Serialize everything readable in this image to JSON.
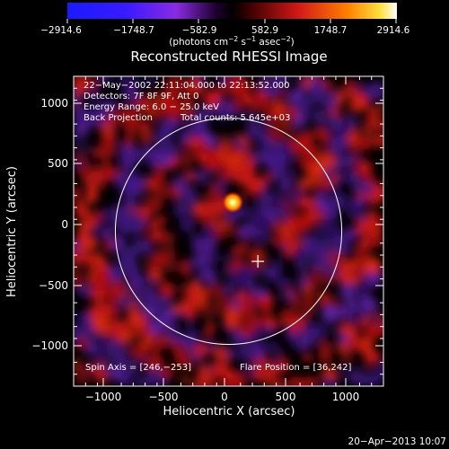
{
  "colorbar": {
    "ticks": [
      "−2914.6",
      "−1748.7",
      "−582.9",
      "582.9",
      "1748.7",
      "2914.6"
    ],
    "units_prefix": "(photons cm",
    "units_exp1": "−2",
    "units_mid": " s",
    "units_exp2": "−1",
    "units_mid2": " asec",
    "units_exp3": "−2",
    "units_suffix": ")"
  },
  "title": "Reconstructed RHESSI Image",
  "info": {
    "time": "22−May−2002 22:11:04.000 to 22:13:52.000",
    "detectors": "Detectors: 7F 8F 9F, Att 0",
    "energy": "Energy Range: 6.0 − 25.0 keV",
    "method": "Back Projection",
    "counts": "Total counts: 5.645e+03",
    "spin_axis": "Spin Axis = [246,−253]",
    "flare_position": "Flare Position = [36,242]"
  },
  "axes": {
    "xlabel": "Heliocentric X (arcsec)",
    "ylabel": "Heliocentric Y (arcsec)",
    "xticks": [
      "−1000",
      "−500",
      "0",
      "500",
      "1000"
    ],
    "yticks": [
      "1000",
      "500",
      "0",
      "−500",
      "−1000"
    ],
    "xlim": [
      -1300,
      1300
    ],
    "ylim": [
      -1300,
      1300
    ]
  },
  "solar_limb_radius_arcsec": 950,
  "spin_axis_marker": {
    "x": 246,
    "y": -253
  },
  "flare_peak": {
    "x": 36,
    "y": 242
  },
  "footer": {
    "date": "20−Apr−2013 10:07"
  },
  "colors": {
    "limb": "#ffffff",
    "background": "#000000"
  }
}
